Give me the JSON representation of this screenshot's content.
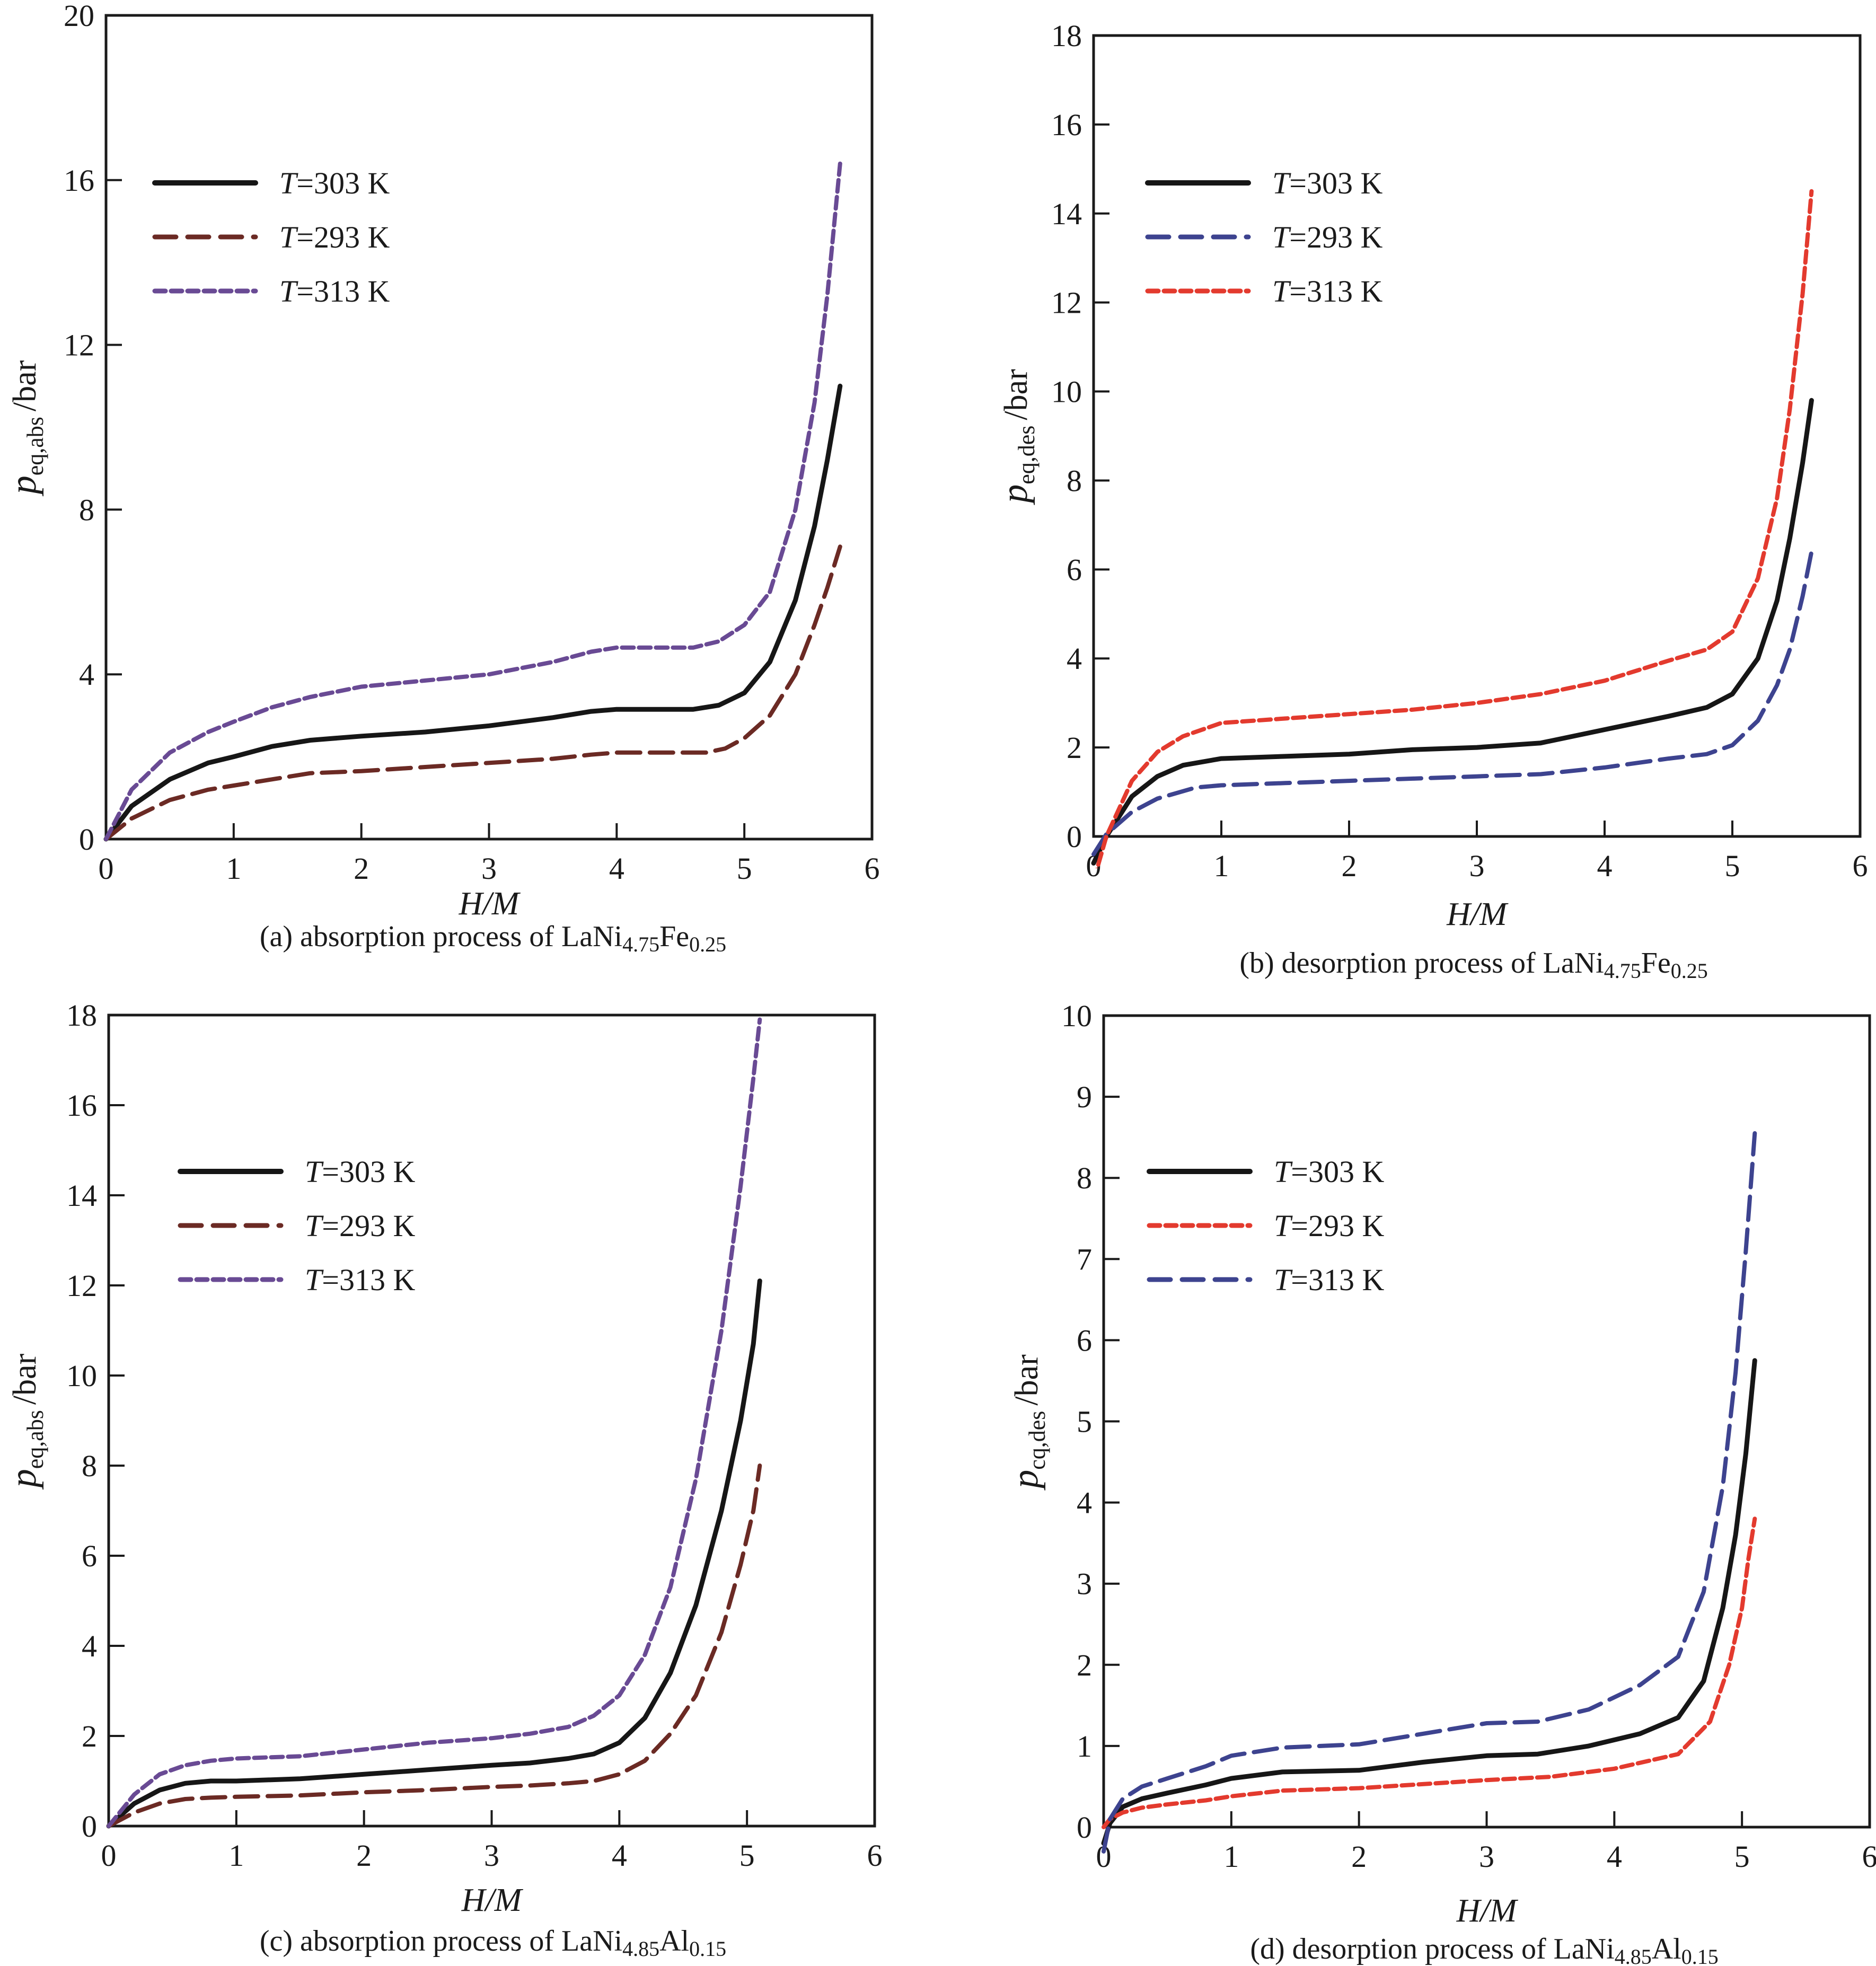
{
  "figure": {
    "panels_count": 4
  },
  "chart_data": [
    {
      "id": "a",
      "type": "line",
      "caption": {
        "prefix": "(a) absorption process of LaNi",
        "sub1": "4.75",
        "mid": "Fe",
        "sub2": "0.25"
      },
      "xlabel": "H/M",
      "ylabel": {
        "main": "p",
        "sub": "eq,abs",
        "unit": "/bar"
      },
      "xlim": [
        0,
        6
      ],
      "ylim": [
        0,
        20
      ],
      "xticks": [
        0,
        1,
        2,
        3,
        4,
        5,
        6
      ],
      "yticks": [
        4,
        8,
        12,
        16,
        20
      ],
      "ytick_labels_shown": [
        "0",
        "4",
        "8",
        "12",
        "16",
        "20"
      ],
      "grid": false,
      "legend_position": "upper-left",
      "series": [
        {
          "name": "T=303 K",
          "label": {
            "var": "T",
            "eq": "=303  K"
          },
          "color": "#161616",
          "style": "solid",
          "x": [
            0.0,
            0.2,
            0.5,
            0.8,
            1.0,
            1.3,
            1.6,
            2.0,
            2.5,
            3.0,
            3.5,
            3.8,
            4.0,
            4.3,
            4.6,
            4.8,
            5.0,
            5.2,
            5.4,
            5.55,
            5.65,
            5.75
          ],
          "y": [
            0.0,
            0.8,
            1.45,
            1.85,
            2.0,
            2.25,
            2.4,
            2.5,
            2.6,
            2.75,
            2.95,
            3.1,
            3.15,
            3.15,
            3.15,
            3.25,
            3.55,
            4.3,
            5.8,
            7.6,
            9.2,
            11.0
          ]
        },
        {
          "name": "T=293 K",
          "label": {
            "var": "T",
            "eq": "=293  K"
          },
          "color": "#6b2a24",
          "style": "dashed",
          "x": [
            0.0,
            0.2,
            0.5,
            0.8,
            1.0,
            1.3,
            1.6,
            2.0,
            2.5,
            3.0,
            3.5,
            3.8,
            4.0,
            4.3,
            4.7,
            4.85,
            5.0,
            5.2,
            5.4,
            5.55,
            5.65,
            5.75
          ],
          "y": [
            0.0,
            0.5,
            0.95,
            1.2,
            1.3,
            1.45,
            1.6,
            1.65,
            1.75,
            1.85,
            1.95,
            2.05,
            2.1,
            2.1,
            2.1,
            2.2,
            2.45,
            3.0,
            4.0,
            5.2,
            6.1,
            7.1
          ]
        },
        {
          "name": "T=313 K",
          "label": {
            "var": "T",
            "eq": "=313  K"
          },
          "color": "#694a94",
          "style": "dotted",
          "x": [
            0.0,
            0.2,
            0.5,
            0.8,
            1.0,
            1.3,
            1.6,
            2.0,
            2.5,
            3.0,
            3.5,
            3.8,
            4.0,
            4.3,
            4.6,
            4.8,
            5.0,
            5.2,
            5.4,
            5.55,
            5.65,
            5.75
          ],
          "y": [
            0.0,
            1.2,
            2.1,
            2.6,
            2.85,
            3.2,
            3.45,
            3.7,
            3.85,
            4.0,
            4.3,
            4.55,
            4.65,
            4.65,
            4.65,
            4.8,
            5.2,
            6.0,
            8.0,
            10.6,
            13.2,
            16.4
          ]
        }
      ]
    },
    {
      "id": "b",
      "type": "line",
      "caption": {
        "prefix": "(b) desorption process of LaNi",
        "sub1": "4.75",
        "mid": "Fe",
        "sub2": "0.25"
      },
      "xlabel": "H/M",
      "ylabel": {
        "main": "p",
        "sub": "eq,des",
        "unit": "/bar"
      },
      "xlim": [
        0,
        6
      ],
      "ylim": [
        0,
        18
      ],
      "xticks": [
        0,
        1,
        2,
        3,
        4,
        5,
        6
      ],
      "yticks": [
        0,
        2,
        4,
        6,
        8,
        10,
        12,
        14,
        16,
        18
      ],
      "grid": false,
      "legend_position": "upper-left",
      "series": [
        {
          "name": "T=303 K",
          "label": {
            "var": "T",
            "eq": "=303  K"
          },
          "color": "#161616",
          "style": "solid",
          "x": [
            0.0,
            0.1,
            0.3,
            0.5,
            0.7,
            1.0,
            1.5,
            2.0,
            2.5,
            3.0,
            3.5,
            4.0,
            4.5,
            4.8,
            5.0,
            5.2,
            5.35,
            5.45,
            5.55,
            5.62
          ],
          "y": [
            -0.6,
            0.0,
            0.9,
            1.35,
            1.6,
            1.75,
            1.8,
            1.85,
            1.95,
            2.0,
            2.1,
            2.4,
            2.7,
            2.9,
            3.2,
            4.0,
            5.3,
            6.7,
            8.4,
            9.8
          ]
        },
        {
          "name": "T=293 K",
          "label": {
            "var": "T",
            "eq": "=293  K"
          },
          "color": "#3d438f",
          "style": "dashed",
          "x": [
            0.0,
            0.1,
            0.3,
            0.5,
            0.8,
            1.0,
            1.5,
            2.0,
            2.5,
            3.0,
            3.5,
            4.0,
            4.5,
            4.8,
            5.0,
            5.2,
            5.35,
            5.45,
            5.55,
            5.62
          ],
          "y": [
            -0.4,
            0.05,
            0.55,
            0.85,
            1.1,
            1.15,
            1.2,
            1.25,
            1.3,
            1.35,
            1.4,
            1.55,
            1.75,
            1.85,
            2.05,
            2.6,
            3.4,
            4.2,
            5.4,
            6.4
          ]
        },
        {
          "name": "T=313 K",
          "label": {
            "var": "T",
            "eq": "=313  K"
          },
          "color": "#e33a2e",
          "style": "dotted",
          "x": [
            0.0,
            0.1,
            0.3,
            0.5,
            0.7,
            1.0,
            1.5,
            2.0,
            2.5,
            3.0,
            3.5,
            4.0,
            4.5,
            4.8,
            5.0,
            5.2,
            5.35,
            5.45,
            5.55,
            5.62
          ],
          "y": [
            -1.0,
            0.0,
            1.25,
            1.9,
            2.25,
            2.55,
            2.65,
            2.75,
            2.85,
            3.0,
            3.2,
            3.5,
            3.95,
            4.2,
            4.6,
            5.8,
            7.6,
            9.6,
            12.2,
            14.5
          ]
        }
      ]
    },
    {
      "id": "c",
      "type": "line",
      "caption": {
        "prefix": "(c) absorption process of LaNi",
        "sub1": "4.85",
        "mid": "Al",
        "sub2": "0.15"
      },
      "xlabel": "H/M",
      "ylabel": {
        "main": "p",
        "sub": "eq,abs",
        "unit": "/bar"
      },
      "xlim": [
        0,
        6
      ],
      "ylim": [
        0,
        18
      ],
      "xticks": [
        0,
        1,
        2,
        3,
        4,
        5,
        6
      ],
      "yticks": [
        2,
        4,
        6,
        8,
        10,
        12,
        14,
        16,
        18
      ],
      "ytick_labels_shown": [
        "0",
        "2",
        "4",
        "6",
        "8",
        "10",
        "12",
        "14",
        "16",
        "18"
      ],
      "grid": false,
      "legend_position": "upper-left",
      "series": [
        {
          "name": "T=303 K",
          "label": {
            "var": "T",
            "eq": "=303  K"
          },
          "color": "#161616",
          "style": "solid",
          "x": [
            0.0,
            0.2,
            0.4,
            0.6,
            0.8,
            1.0,
            1.5,
            2.0,
            2.5,
            3.0,
            3.3,
            3.6,
            3.8,
            4.0,
            4.2,
            4.4,
            4.6,
            4.8,
            4.95,
            5.05,
            5.1
          ],
          "y": [
            0.0,
            0.5,
            0.8,
            0.95,
            1.0,
            1.0,
            1.05,
            1.15,
            1.25,
            1.35,
            1.4,
            1.5,
            1.6,
            1.85,
            2.4,
            3.4,
            4.9,
            7.0,
            9.0,
            10.7,
            12.1
          ]
        },
        {
          "name": "T=293 K",
          "label": {
            "var": "T",
            "eq": "=293  K"
          },
          "color": "#6b2a24",
          "style": "dashed",
          "x": [
            0.0,
            0.2,
            0.4,
            0.6,
            0.8,
            1.0,
            1.5,
            2.0,
            2.5,
            3.0,
            3.3,
            3.6,
            3.8,
            4.0,
            4.2,
            4.4,
            4.6,
            4.8,
            4.95,
            5.05,
            5.1
          ],
          "y": [
            0.0,
            0.3,
            0.5,
            0.6,
            0.63,
            0.65,
            0.68,
            0.75,
            0.8,
            0.87,
            0.9,
            0.95,
            1.0,
            1.15,
            1.45,
            2.05,
            2.9,
            4.3,
            5.8,
            7.0,
            8.0
          ]
        },
        {
          "name": "T=313 K",
          "label": {
            "var": "T",
            "eq": "=313  K"
          },
          "color": "#694a94",
          "style": "dotted",
          "x": [
            0.0,
            0.2,
            0.4,
            0.6,
            0.8,
            1.0,
            1.5,
            2.0,
            2.5,
            3.0,
            3.3,
            3.6,
            3.8,
            4.0,
            4.2,
            4.4,
            4.6,
            4.8,
            4.95,
            5.05,
            5.1
          ],
          "y": [
            0.0,
            0.7,
            1.15,
            1.35,
            1.45,
            1.5,
            1.55,
            1.7,
            1.85,
            1.95,
            2.05,
            2.2,
            2.45,
            2.9,
            3.8,
            5.3,
            7.7,
            11.0,
            14.2,
            16.6,
            17.9
          ]
        }
      ]
    },
    {
      "id": "d",
      "type": "line",
      "caption": {
        "prefix": "(d) desorption process of LaNi",
        "sub1": "4.85",
        "mid": "Al",
        "sub2": "0.15"
      },
      "xlabel": "H/M",
      "ylabel": {
        "main": "p",
        "sub": "cq,des",
        "unit": "/bar"
      },
      "xlim": [
        0,
        6
      ],
      "ylim": [
        0,
        10
      ],
      "xticks": [
        0,
        1,
        2,
        3,
        4,
        5,
        6
      ],
      "yticks": [
        0,
        1,
        2,
        3,
        4,
        5,
        6,
        7,
        8,
        9,
        10
      ],
      "grid": false,
      "legend_position": "upper-left",
      "series": [
        {
          "name": "T=303 K",
          "label": {
            "var": "T",
            "eq": "=303  K"
          },
          "color": "#161616",
          "style": "solid",
          "x": [
            0.0,
            0.05,
            0.15,
            0.3,
            0.5,
            0.8,
            1.0,
            1.4,
            2.0,
            2.5,
            3.0,
            3.4,
            3.8,
            4.2,
            4.5,
            4.7,
            4.85,
            4.95,
            5.03,
            5.1
          ],
          "y": [
            -0.2,
            0.05,
            0.25,
            0.35,
            0.42,
            0.52,
            0.6,
            0.68,
            0.7,
            0.8,
            0.88,
            0.9,
            1.0,
            1.15,
            1.35,
            1.8,
            2.7,
            3.6,
            4.6,
            5.75
          ]
        },
        {
          "name": "T=293 K",
          "label": {
            "var": "T",
            "eq": "=293  K"
          },
          "color": "#e33a2e",
          "style": "dotted",
          "x": [
            0.0,
            0.05,
            0.15,
            0.3,
            0.5,
            0.8,
            1.0,
            1.4,
            2.0,
            2.5,
            3.0,
            3.5,
            4.0,
            4.5,
            4.75,
            4.9,
            5.0,
            5.05,
            5.1
          ],
          "y": [
            0.0,
            0.1,
            0.18,
            0.24,
            0.28,
            0.33,
            0.38,
            0.45,
            0.48,
            0.53,
            0.58,
            0.62,
            0.72,
            0.9,
            1.3,
            2.0,
            2.7,
            3.3,
            3.8
          ]
        },
        {
          "name": "T=313 K",
          "label": {
            "var": "T",
            "eq": "=313  K"
          },
          "color": "#3d438f",
          "style": "dashed",
          "x": [
            0.0,
            0.05,
            0.15,
            0.3,
            0.5,
            0.8,
            1.0,
            1.4,
            2.0,
            2.5,
            3.0,
            3.4,
            3.8,
            4.2,
            4.5,
            4.7,
            4.85,
            4.95,
            5.03,
            5.1
          ],
          "y": [
            -0.3,
            0.1,
            0.35,
            0.5,
            0.6,
            0.75,
            0.88,
            0.98,
            1.02,
            1.15,
            1.28,
            1.3,
            1.45,
            1.75,
            2.1,
            2.9,
            4.2,
            5.6,
            7.1,
            8.55
          ]
        }
      ]
    }
  ]
}
